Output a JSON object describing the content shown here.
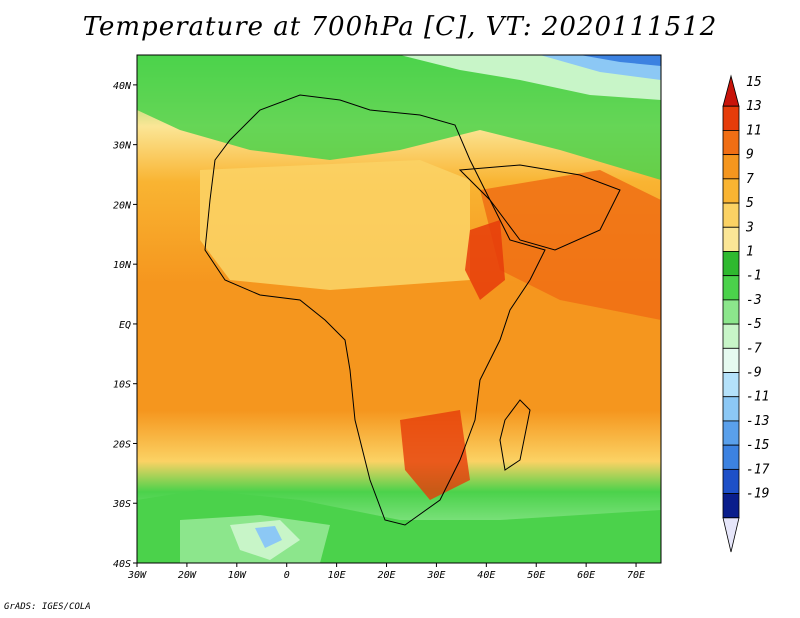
{
  "title": "Temperature at 700hPa [C], VT: 2020111512",
  "credit": "GrADS: IGES/COLA",
  "map": {
    "lon_labels": [
      "30W",
      "20W",
      "10W",
      "0",
      "10E",
      "20E",
      "30E",
      "40E",
      "50E",
      "60E",
      "70E"
    ],
    "lat_labels": [
      "40N",
      "30N",
      "20N",
      "10N",
      "EQ",
      "10S",
      "20S",
      "30S",
      "40S"
    ],
    "lon_range": [
      -30,
      75
    ],
    "lat_range": [
      -40,
      45
    ]
  },
  "colorbar": {
    "labels": [
      "15",
      "13",
      "11",
      "9",
      "7",
      "5",
      "3",
      "1",
      "-1",
      "-3",
      "-5",
      "-7",
      "-9",
      "-11",
      "-13",
      "-15",
      "-17",
      "-19"
    ],
    "colors": [
      "#c8140a",
      "#e63c0a",
      "#f06e14",
      "#f5961e",
      "#f9b432",
      "#fbd264",
      "#fbe696",
      "#2fb92f",
      "#4bd24b",
      "#8ce68c",
      "#c8f5c8",
      "#e6faf0",
      "#b4e1fa",
      "#8cc8f5",
      "#5aa0eb",
      "#3c82e1",
      "#1e50c8",
      "#0a1e8c",
      "#000a50"
    ]
  }
}
